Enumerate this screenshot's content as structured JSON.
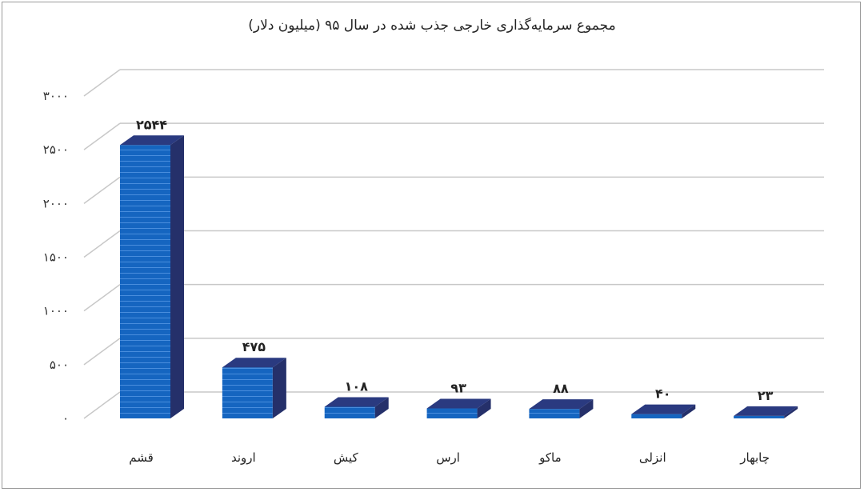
{
  "chart_data": {
    "type": "bar",
    "title": "مجموع سرمایه‌گذاری خارجی جذب شده در سال ۹۵ (میلیون دلار)",
    "categories": [
      "قشم",
      "اروند",
      "کیش",
      "ارس",
      "ماکو",
      "انزلی",
      "چابهار"
    ],
    "values": [
      2544,
      475,
      108,
      93,
      88,
      40,
      23
    ],
    "value_labels": [
      "۲۵۴۴",
      "۴۷۵",
      "۱۰۸",
      "۹۳",
      "۸۸",
      "۴۰",
      "۲۳"
    ],
    "ytick_labels": [
      "۰",
      "۵۰۰",
      "۱۰۰۰",
      "۱۵۰۰",
      "۲۰۰۰",
      "۲۵۰۰",
      "۳۰۰۰"
    ],
    "yticks": [
      0,
      500,
      1000,
      1500,
      2000,
      2500,
      3000
    ],
    "ylim": [
      0,
      3000
    ],
    "grid": true,
    "legend": "none",
    "style": "3d-column",
    "colors": {
      "bar_front": "#1565c0",
      "bar_side": "#25306a",
      "bar_top": "#2a3a80",
      "bar_stripe": "#4f8fe0",
      "grid": "#c8c8c8"
    }
  }
}
